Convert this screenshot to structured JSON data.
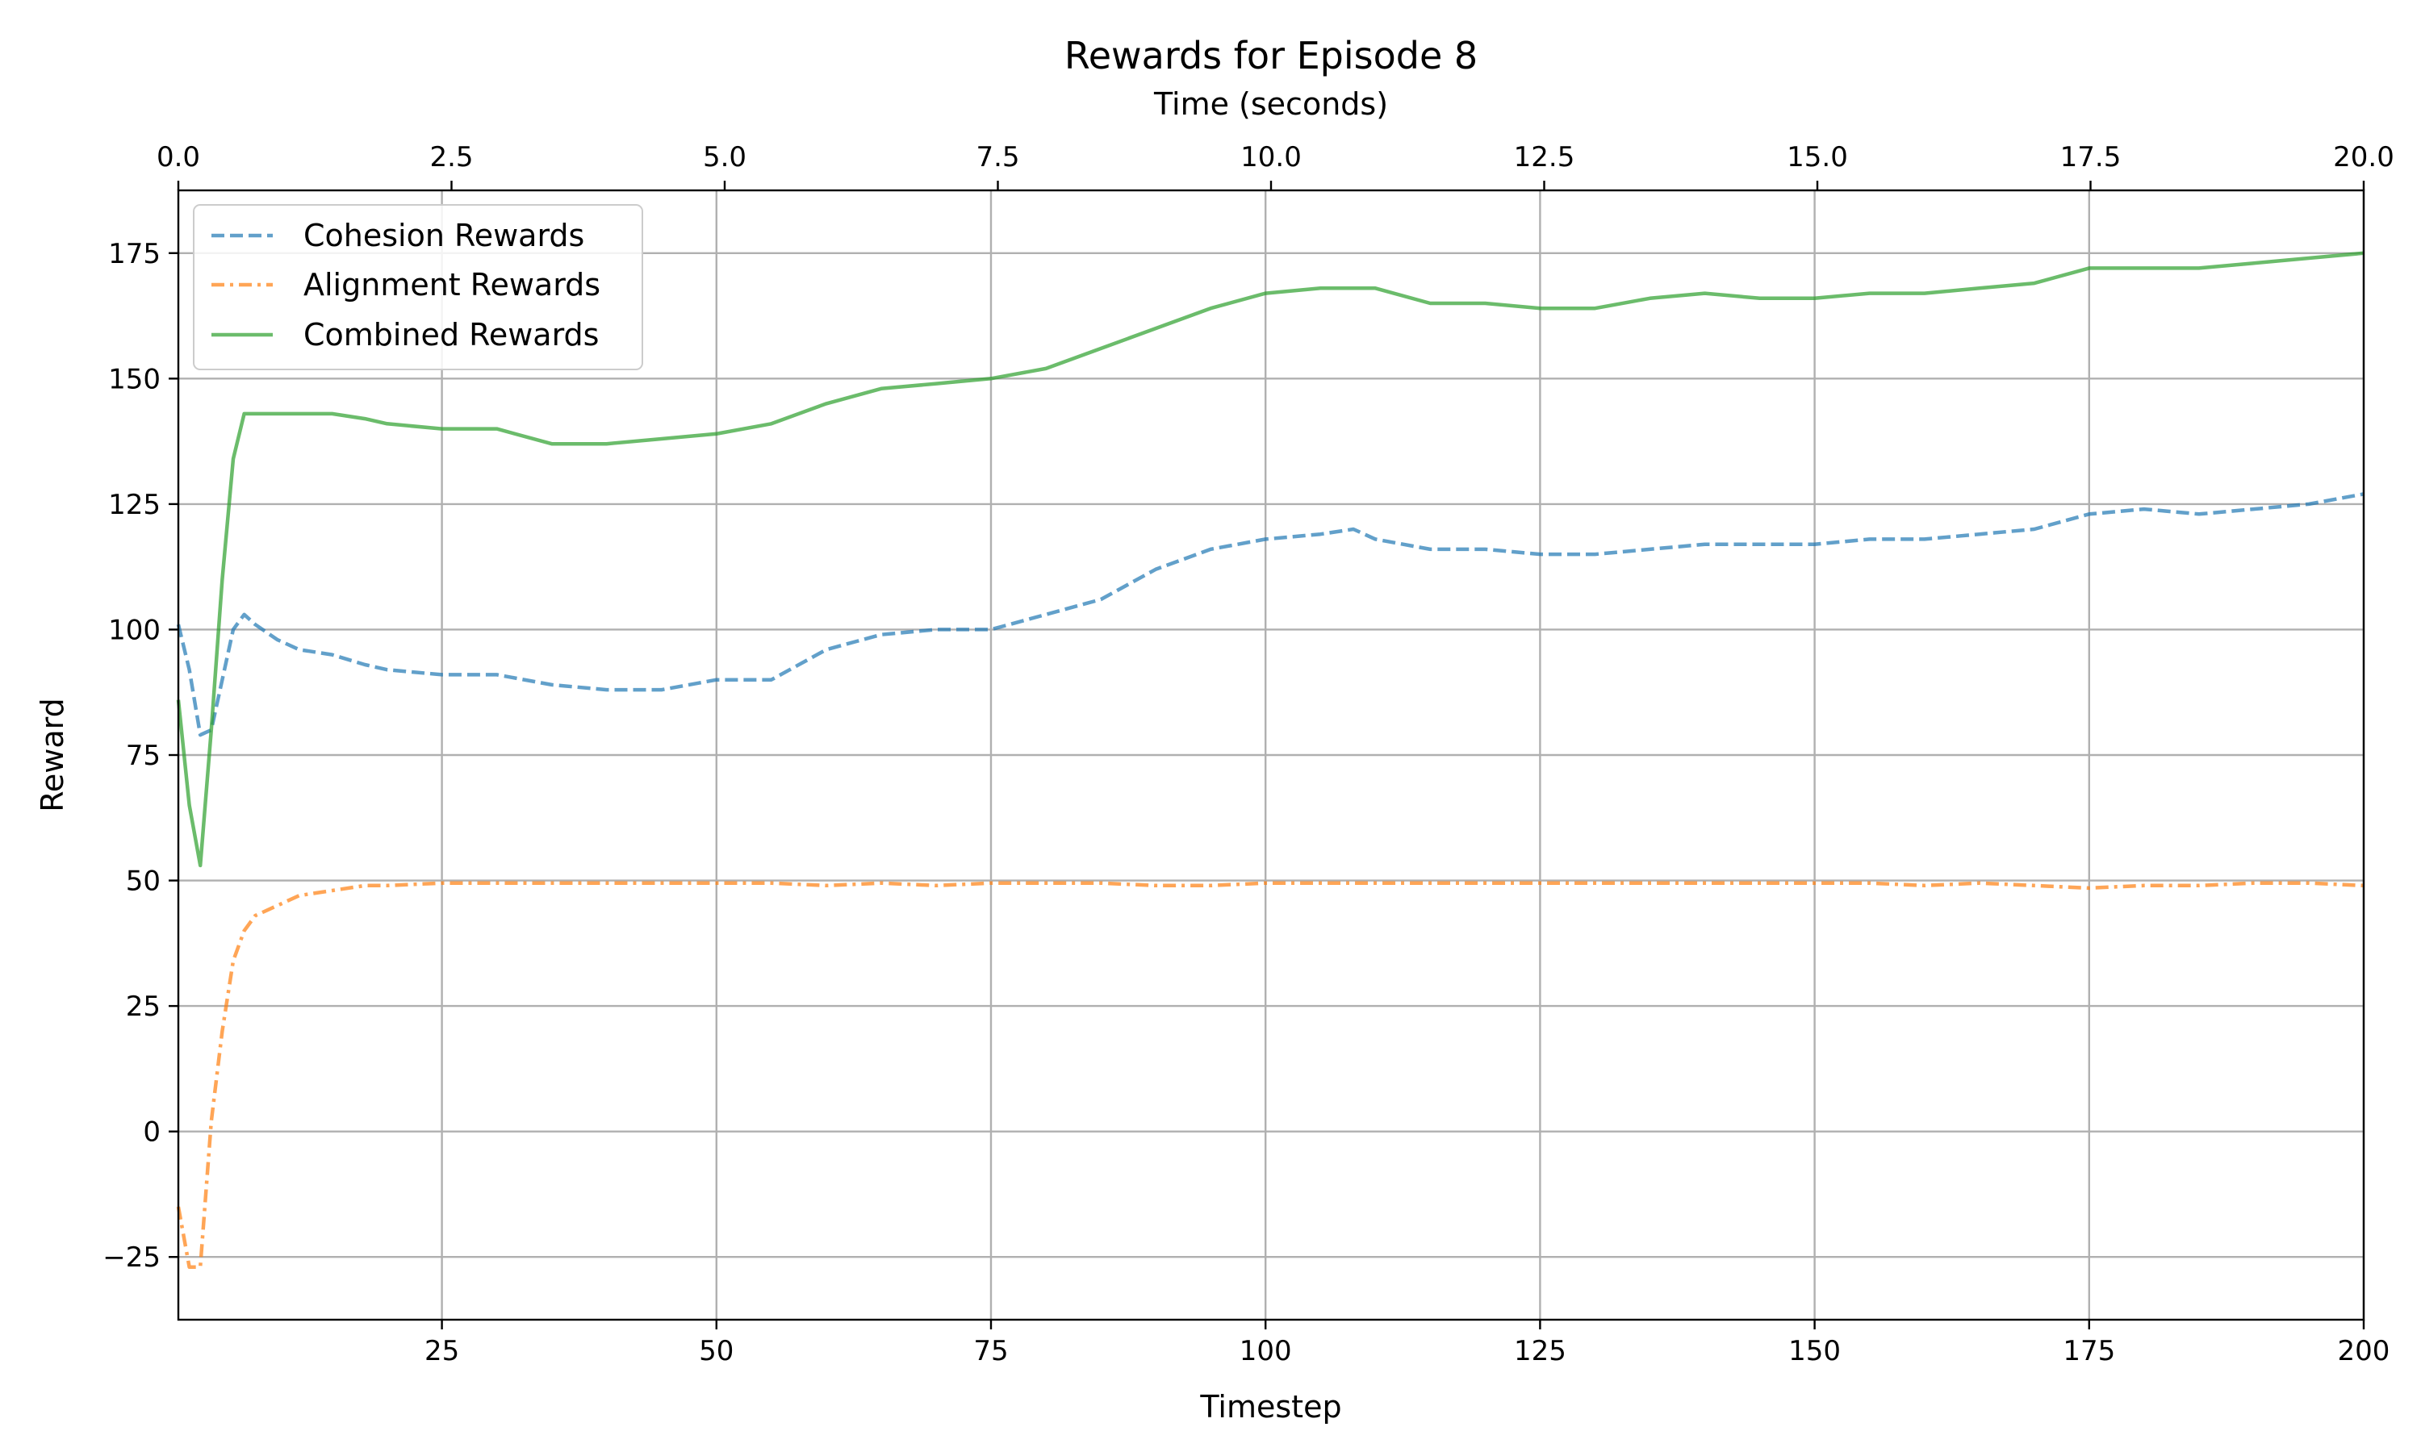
{
  "chart_data": {
    "type": "line",
    "title": "Rewards for Episode 8",
    "xlabel": "Timestep",
    "ylabel": "Reward",
    "secondary_xlabel": "Time (seconds)",
    "xlim": [
      1,
      200
    ],
    "ylim": [
      -37.5,
      187.5
    ],
    "secondary_xlim": [
      0,
      20
    ],
    "grid": true,
    "legend_position": "upper-left",
    "x_ticks": [
      25,
      50,
      75,
      100,
      125,
      150,
      175,
      200
    ],
    "x_tick_labels": [
      "25",
      "50",
      "75",
      "100",
      "125",
      "150",
      "175",
      "200"
    ],
    "y_ticks": [
      -25,
      0,
      25,
      50,
      75,
      100,
      125,
      150,
      175
    ],
    "y_tick_labels": [
      "−25",
      "0",
      "25",
      "50",
      "75",
      "100",
      "125",
      "150",
      "175"
    ],
    "secondary_x_ticks": [
      0,
      2.5,
      5,
      7.5,
      10,
      12.5,
      15,
      17.5,
      20
    ],
    "secondary_x_tick_labels": [
      "0.0",
      "2.5",
      "5.0",
      "7.5",
      "10.0",
      "12.5",
      "15.0",
      "17.5",
      "20.0"
    ],
    "x": [
      1,
      2,
      3,
      4,
      5,
      6,
      7,
      8,
      10,
      12,
      15,
      18,
      20,
      25,
      30,
      35,
      40,
      45,
      50,
      55,
      60,
      65,
      70,
      75,
      80,
      85,
      90,
      95,
      100,
      105,
      108,
      110,
      115,
      120,
      125,
      130,
      135,
      140,
      145,
      150,
      155,
      160,
      165,
      170,
      175,
      180,
      185,
      190,
      195,
      200
    ],
    "series": [
      {
        "name": "Cohesion Rewards",
        "color": "#1f77b4",
        "line_style": "dashed",
        "values": [
          101,
          92,
          79,
          80,
          90,
          100,
          103,
          101,
          98,
          96,
          95,
          93,
          92,
          91,
          91,
          89,
          88,
          88,
          90,
          90,
          96,
          99,
          100,
          100,
          103,
          106,
          112,
          116,
          118,
          119,
          120,
          118,
          116,
          116,
          115,
          115,
          116,
          117,
          117,
          117,
          118,
          118,
          119,
          120,
          123,
          124,
          123,
          124,
          125,
          127
        ]
      },
      {
        "name": "Alignment Rewards",
        "color": "#ff7f0e",
        "line_style": "dashdot",
        "values": [
          -15,
          -27,
          -27,
          2,
          20,
          34,
          40,
          43,
          45,
          47,
          48,
          49,
          49,
          49.5,
          49.5,
          49.5,
          49.5,
          49.5,
          49.5,
          49.5,
          49,
          49.5,
          49,
          49.5,
          49.5,
          49.5,
          49,
          49,
          49.5,
          49.5,
          49.5,
          49.5,
          49.5,
          49.5,
          49.5,
          49.5,
          49.5,
          49.5,
          49.5,
          49.5,
          49.5,
          49,
          49.5,
          49,
          48.5,
          49,
          49,
          49.5,
          49.5,
          49
        ]
      },
      {
        "name": "Combined Rewards",
        "color": "#2ca02c",
        "line_style": "solid",
        "values": [
          86,
          65,
          53,
          80,
          110,
          134,
          143,
          143,
          143,
          143,
          143,
          142,
          141,
          140,
          140,
          137,
          137,
          138,
          139,
          141,
          145,
          148,
          149,
          150,
          152,
          156,
          160,
          164,
          167,
          168,
          168,
          168,
          165,
          165,
          164,
          164,
          166,
          167,
          166,
          166,
          167,
          167,
          168,
          169,
          172,
          172,
          172,
          173,
          174,
          175
        ]
      }
    ]
  }
}
